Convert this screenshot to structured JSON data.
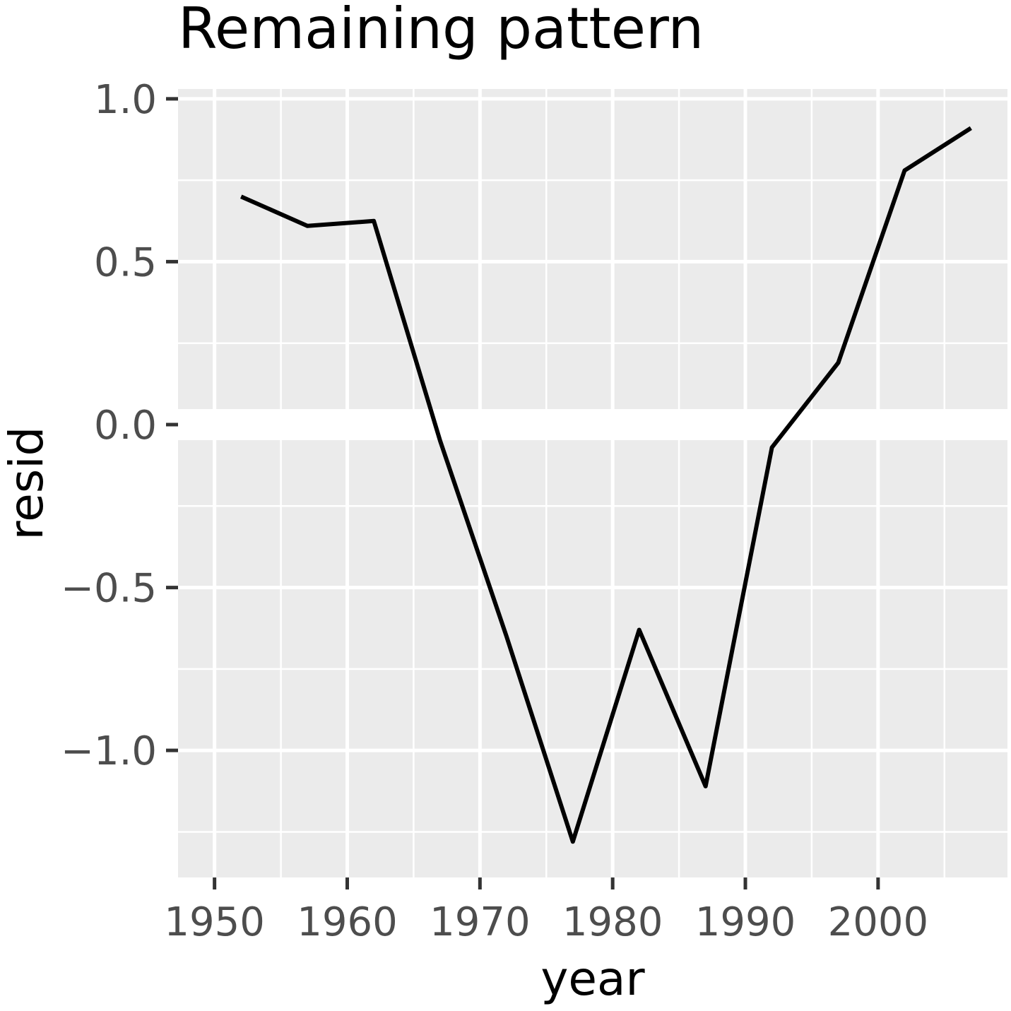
{
  "chart_data": {
    "type": "line",
    "title": "Remaining pattern",
    "xlabel": "year",
    "ylabel": "resid",
    "xlim": [
      1947.25,
      2009.75
    ],
    "ylim": [
      -1.39,
      1.03
    ],
    "x_ticks": [
      1950,
      1960,
      1970,
      1980,
      1990,
      2000
    ],
    "x_tick_labels": [
      "1950",
      "1960",
      "1970",
      "1980",
      "1990",
      "2000"
    ],
    "y_ticks": [
      -1.0,
      -0.5,
      0.0,
      0.5,
      1.0
    ],
    "y_tick_labels": [
      "−1.0",
      "−0.5",
      "0.0",
      "0.5",
      "1.0"
    ],
    "grid": true,
    "panel_color": "#ebebeb",
    "line_color": "#000000",
    "series": [
      {
        "x": [
          1952,
          1957,
          1962,
          1967,
          1972,
          1977,
          1982,
          1987,
          1992,
          1997,
          2002,
          2007
        ],
        "values": [
          0.7,
          0.61,
          0.625,
          -0.05,
          -0.65,
          -1.28,
          -0.63,
          -1.11,
          -0.07,
          0.19,
          0.78,
          0.91
        ]
      }
    ]
  }
}
